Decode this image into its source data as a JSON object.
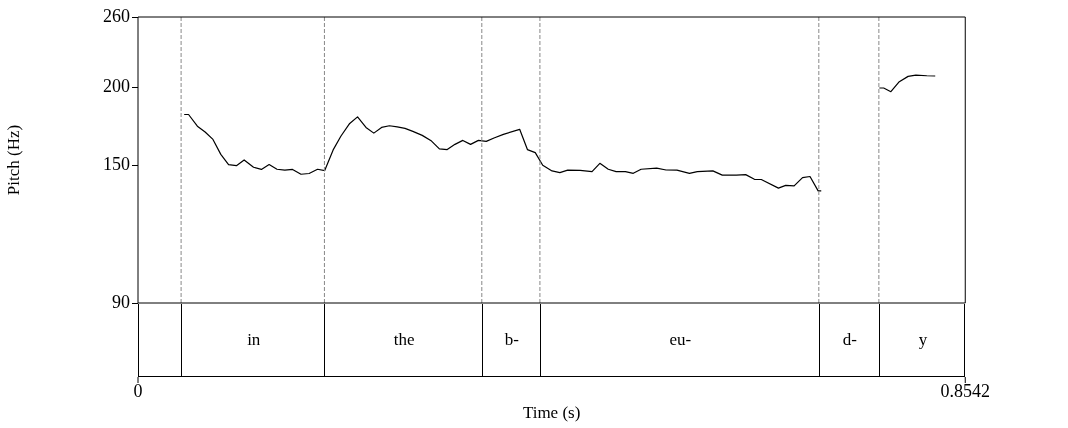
{
  "chart_data": {
    "type": "line",
    "xlabel": "Time (s)",
    "ylabel": "Pitch (Hz)",
    "log": "y",
    "xlim": [
      0,
      0.8542
    ],
    "xticks": [
      0,
      0.8542
    ],
    "ylim": [
      90,
      260
    ],
    "yticks": [
      90,
      150,
      200,
      260
    ],
    "grid": false,
    "legend": false,
    "x": [
      0.0477,
      0.0522,
      0.0613,
      0.0693,
      0.0774,
      0.0855,
      0.0935,
      0.1016,
      0.1096,
      0.1193,
      0.1274,
      0.1354,
      0.1435,
      0.1516,
      0.1596,
      0.1683,
      0.1767,
      0.1854,
      0.1928,
      0.2015,
      0.2096,
      0.2186,
      0.2267,
      0.2354,
      0.2435,
      0.2515,
      0.2596,
      0.2677,
      0.2757,
      0.2838,
      0.2935,
      0.3031,
      0.3112,
      0.3193,
      0.3273,
      0.3354,
      0.3434,
      0.3515,
      0.3596,
      0.3676,
      0.3773,
      0.3941,
      0.4021,
      0.4102,
      0.4179,
      0.4275,
      0.4356,
      0.4437,
      0.4566,
      0.4688,
      0.4769,
      0.4856,
      0.4937,
      0.5033,
      0.5114,
      0.5195,
      0.5356,
      0.5453,
      0.5565,
      0.5694,
      0.5775,
      0.5936,
      0.6033,
      0.6178,
      0.6275,
      0.6365,
      0.6436,
      0.6613,
      0.6688,
      0.6775,
      0.6862,
      0.6939,
      0.7023,
      0.7055,
      0.735,
      0.7655,
      0.77,
      0.7774,
      0.7861,
      0.7952,
      0.8032,
      0.8145,
      0.8232
    ],
    "series": [
      {
        "color": "#000000",
        "values": [
          181.1,
          181.1,
          173.4,
          169.7,
          165.1,
          156.2,
          150.4,
          149.8,
          153.0,
          148.9,
          147.7,
          150.4,
          147.8,
          147.3,
          147.7,
          145.1,
          145.5,
          147.8,
          147.1,
          158.8,
          167.2,
          175.2,
          179.5,
          172.6,
          169.0,
          172.6,
          173.7,
          173.0,
          172.0,
          170.1,
          167.6,
          164.1,
          159.4,
          159.0,
          162.1,
          164.5,
          162.1,
          164.5,
          163.9,
          166.0,
          168.2,
          171.4,
          159.0,
          157.2,
          150.0,
          146.9,
          146.0,
          147.3,
          147.2,
          146.5,
          151.1,
          147.8,
          146.5,
          146.5,
          145.6,
          147.8,
          148.4,
          147.4,
          147.3,
          145.6,
          146.5,
          146.9,
          144.6,
          144.6,
          144.9,
          142.4,
          142.3,
          137.8,
          139.2,
          139.0,
          143.3,
          143.9,
          136.4,
          136.4,
          null,
          199.8,
          199.8,
          197.1,
          204.5,
          208.6,
          209.6,
          209.1,
          208.9
        ]
      }
    ],
    "ref_lines": [
      {
        "axis": "x",
        "value": 0.0445,
        "color": "#888888",
        "line_style": "dashed"
      },
      {
        "axis": "x",
        "value": 0.1925,
        "color": "#888888",
        "line_style": "dashed"
      },
      {
        "axis": "x",
        "value": 0.355,
        "color": "#888888",
        "line_style": "dashed"
      },
      {
        "axis": "x",
        "value": 0.415,
        "color": "#888888",
        "line_style": "dashed"
      },
      {
        "axis": "x",
        "value": 0.703,
        "color": "#888888",
        "line_style": "dashed"
      },
      {
        "axis": "x",
        "value": 0.765,
        "color": "#888888",
        "line_style": "dashed"
      }
    ],
    "annotations": [
      "in",
      "the",
      "b-",
      "eu-",
      "d-",
      "y"
    ]
  }
}
